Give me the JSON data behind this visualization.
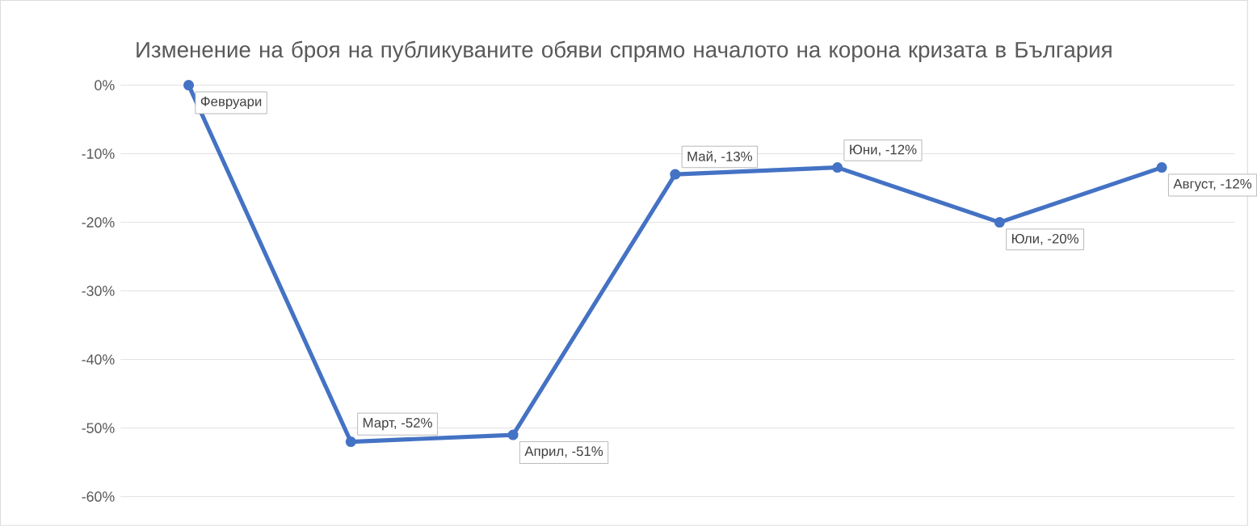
{
  "chart_data": {
    "type": "line",
    "title": "Изменение на броя на публикуваните обяви спрямо началото на корона кризата в България",
    "categories": [
      null,
      null,
      null,
      null,
      null,
      null,
      null
    ],
    "values": [
      0,
      -52,
      -51,
      -13,
      -12,
      -20,
      -12
    ],
    "value_labels": [
      "Февруари",
      "Март, -52%",
      "Април, -51%",
      "Май, -13%",
      "Юни, -12%",
      "Юли, -20%",
      "Август, -12%"
    ],
    "color": "#4472c4",
    "marker": "circle",
    "ylim": [
      -60,
      0
    ],
    "yticks": [
      {
        "value": -60,
        "label": "-60%"
      },
      {
        "value": -50,
        "label": "-50%"
      },
      {
        "value": -40,
        "label": "-40%"
      },
      {
        "value": -30,
        "label": "-30%"
      },
      {
        "value": -20,
        "label": "-20%"
      },
      {
        "value": -10,
        "label": "-10%"
      },
      {
        "value": 0,
        "label": "0%"
      }
    ],
    "grid": "y"
  }
}
